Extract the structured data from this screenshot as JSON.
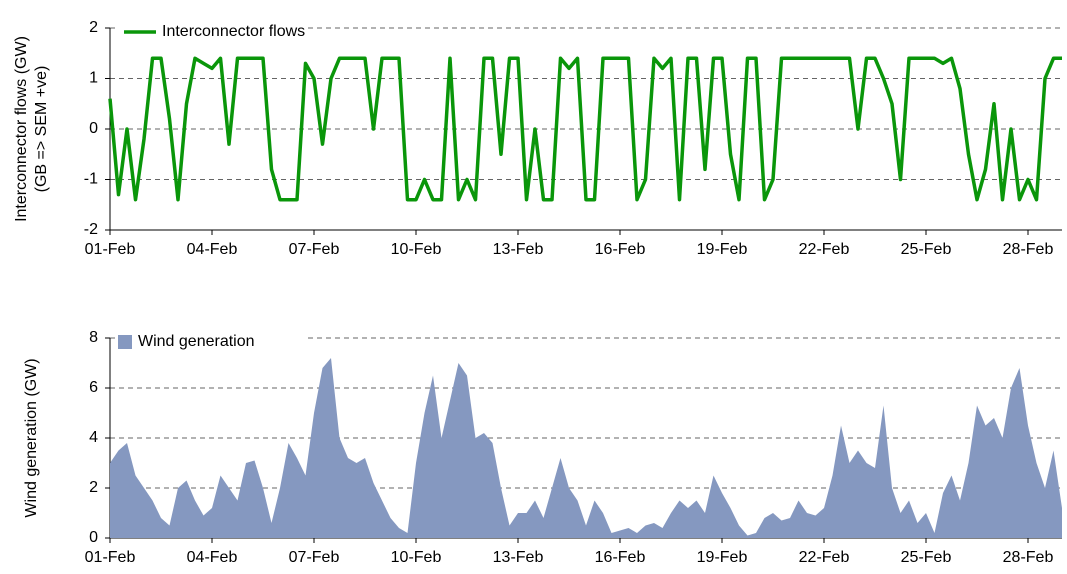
{
  "chart_data": [
    {
      "type": "line",
      "ylabel": [
        "Interconnector flows (GW)",
        "(GB => SEM +ve)"
      ],
      "x": [
        0,
        0.25,
        0.5,
        0.75,
        1,
        1.25,
        1.5,
        1.75,
        2,
        2.25,
        2.5,
        2.75,
        3,
        3.25,
        3.5,
        3.75,
        4,
        4.25,
        4.5,
        4.75,
        5,
        5.25,
        5.5,
        5.75,
        6,
        6.25,
        6.5,
        6.75,
        7,
        7.25,
        7.5,
        7.75,
        8,
        8.25,
        8.5,
        8.75,
        9,
        9.25,
        9.5,
        9.75,
        10,
        10.25,
        10.5,
        10.75,
        11,
        11.25,
        11.5,
        11.75,
        12,
        12.25,
        12.5,
        12.75,
        13,
        13.25,
        13.5,
        13.75,
        14,
        14.25,
        14.5,
        14.75,
        15,
        15.25,
        15.5,
        15.75,
        16,
        16.25,
        16.5,
        16.75,
        17,
        17.25,
        17.5,
        17.75,
        18,
        18.25,
        18.5,
        18.75,
        19,
        19.25,
        19.5,
        19.75,
        20,
        20.25,
        20.5,
        20.75,
        21,
        21.25,
        21.5,
        21.75,
        22,
        22.25,
        22.5,
        22.75,
        23,
        23.25,
        23.5,
        23.75,
        24,
        24.25,
        24.5,
        24.75,
        25,
        25.25,
        25.5,
        25.75,
        26,
        26.25,
        26.5,
        26.75,
        27,
        27.25,
        27.5,
        27.75,
        28
      ],
      "series": [
        {
          "name": "Interconnector flows",
          "color": "#0a960a",
          "values": [
            0.6,
            -1.3,
            0,
            -1.4,
            -0.2,
            1.4,
            1.4,
            0.2,
            -1.4,
            0.5,
            1.4,
            1.3,
            1.2,
            1.4,
            -0.3,
            1.4,
            1.4,
            1.4,
            1.4,
            -0.8,
            -1.4,
            -1.4,
            -1.4,
            1.3,
            1.0,
            -0.3,
            1.0,
            1.4,
            1.4,
            1.4,
            1.4,
            0,
            1.4,
            1.4,
            1.4,
            -1.4,
            -1.4,
            -1.0,
            -1.4,
            -1.4,
            1.4,
            -1.4,
            -1.0,
            -1.4,
            1.4,
            1.4,
            -0.5,
            1.4,
            1.4,
            -1.4,
            0,
            -1.4,
            -1.4,
            1.4,
            1.2,
            1.4,
            -1.4,
            -1.4,
            1.4,
            1.4,
            1.4,
            1.4,
            -1.4,
            -1.0,
            1.4,
            1.2,
            1.4,
            -1.4,
            1.4,
            1.4,
            -0.8,
            1.4,
            1.4,
            -0.5,
            -1.4,
            1.4,
            1.4,
            -1.4,
            -1.0,
            1.4,
            1.4,
            1.4,
            1.4,
            1.4,
            1.4,
            1.4,
            1.4,
            1.4,
            0,
            1.4,
            1.4,
            1.0,
            0.5,
            -1.0,
            1.4,
            1.4,
            1.4,
            1.4,
            1.3,
            1.4,
            0.8,
            -0.5,
            -1.4,
            -0.8,
            0.5,
            -1.4,
            0,
            -1.4,
            -1.0,
            -1.4,
            1.0,
            1.4,
            1.4
          ]
        }
      ],
      "xlim": [
        0,
        28
      ],
      "xticks": [
        {
          "value": 0,
          "label": "01-Feb"
        },
        {
          "value": 3,
          "label": "04-Feb"
        },
        {
          "value": 6,
          "label": "07-Feb"
        },
        {
          "value": 9,
          "label": "10-Feb"
        },
        {
          "value": 12,
          "label": "13-Feb"
        },
        {
          "value": 15,
          "label": "16-Feb"
        },
        {
          "value": 18,
          "label": "19-Feb"
        },
        {
          "value": 21,
          "label": "22-Feb"
        },
        {
          "value": 24,
          "label": "25-Feb"
        },
        {
          "value": 27,
          "label": "28-Feb"
        }
      ],
      "ylim": [
        -2,
        2
      ],
      "yticks": [
        -2,
        -1,
        0,
        1,
        2
      ],
      "grid": true,
      "legend": "top-left"
    },
    {
      "type": "area",
      "ylabel": [
        "Wind generation (GW)"
      ],
      "x": [
        0,
        0.25,
        0.5,
        0.75,
        1,
        1.25,
        1.5,
        1.75,
        2,
        2.25,
        2.5,
        2.75,
        3,
        3.25,
        3.5,
        3.75,
        4,
        4.25,
        4.5,
        4.75,
        5,
        5.25,
        5.5,
        5.75,
        6,
        6.25,
        6.5,
        6.75,
        7,
        7.25,
        7.5,
        7.75,
        8,
        8.25,
        8.5,
        8.75,
        9,
        9.25,
        9.5,
        9.75,
        10,
        10.25,
        10.5,
        10.75,
        11,
        11.25,
        11.5,
        11.75,
        12,
        12.25,
        12.5,
        12.75,
        13,
        13.25,
        13.5,
        13.75,
        14,
        14.25,
        14.5,
        14.75,
        15,
        15.25,
        15.5,
        15.75,
        16,
        16.25,
        16.5,
        16.75,
        17,
        17.25,
        17.5,
        17.75,
        18,
        18.25,
        18.5,
        18.75,
        19,
        19.25,
        19.5,
        19.75,
        20,
        20.25,
        20.5,
        20.75,
        21,
        21.25,
        21.5,
        21.75,
        22,
        22.25,
        22.5,
        22.75,
        23,
        23.25,
        23.5,
        23.75,
        24,
        24.25,
        24.5,
        24.75,
        25,
        25.25,
        25.5,
        25.75,
        26,
        26.25,
        26.5,
        26.75,
        27,
        27.25,
        27.5,
        27.75,
        28
      ],
      "series": [
        {
          "name": "Wind generation",
          "color": "#8598c0",
          "values": [
            3.0,
            3.5,
            3.8,
            2.5,
            2.0,
            1.5,
            0.8,
            0.5,
            2.0,
            2.3,
            1.5,
            0.9,
            1.2,
            2.5,
            2.0,
            1.5,
            3.0,
            3.1,
            2.0,
            0.6,
            2.0,
            3.8,
            3.2,
            2.5,
            5.0,
            6.8,
            7.2,
            4.0,
            3.2,
            3.0,
            3.2,
            2.2,
            1.5,
            0.8,
            0.4,
            0.2,
            3.0,
            5.0,
            6.5,
            4.0,
            5.5,
            7.0,
            6.5,
            4.0,
            4.2,
            3.8,
            2.0,
            0.5,
            1.0,
            1.0,
            1.5,
            0.8,
            2.0,
            3.2,
            2.0,
            1.5,
            0.5,
            1.5,
            1.0,
            0.2,
            0.3,
            0.4,
            0.2,
            0.5,
            0.6,
            0.4,
            1.0,
            1.5,
            1.2,
            1.5,
            1.0,
            2.5,
            1.8,
            1.2,
            0.5,
            0.1,
            0.2,
            0.8,
            1.0,
            0.7,
            0.8,
            1.5,
            1.0,
            0.9,
            1.2,
            2.5,
            4.5,
            3.0,
            3.5,
            3.0,
            2.8,
            5.3,
            2.0,
            1.0,
            1.5,
            0.6,
            1.0,
            0.2,
            1.8,
            2.5,
            1.5,
            3.0,
            5.3,
            4.5,
            4.8,
            4.0,
            6.0,
            6.8,
            4.5,
            3.0,
            2.0,
            3.5,
            1.2
          ]
        }
      ],
      "xlim": [
        0,
        28
      ],
      "xticks": [
        {
          "value": 0,
          "label": "01-Feb"
        },
        {
          "value": 3,
          "label": "04-Feb"
        },
        {
          "value": 6,
          "label": "07-Feb"
        },
        {
          "value": 9,
          "label": "10-Feb"
        },
        {
          "value": 12,
          "label": "13-Feb"
        },
        {
          "value": 15,
          "label": "16-Feb"
        },
        {
          "value": 18,
          "label": "19-Feb"
        },
        {
          "value": 21,
          "label": "22-Feb"
        },
        {
          "value": 24,
          "label": "25-Feb"
        },
        {
          "value": 27,
          "label": "28-Feb"
        }
      ],
      "ylim": [
        0,
        8
      ],
      "yticks": [
        0,
        2,
        4,
        6,
        8
      ],
      "grid": true,
      "legend": "top-left"
    }
  ]
}
